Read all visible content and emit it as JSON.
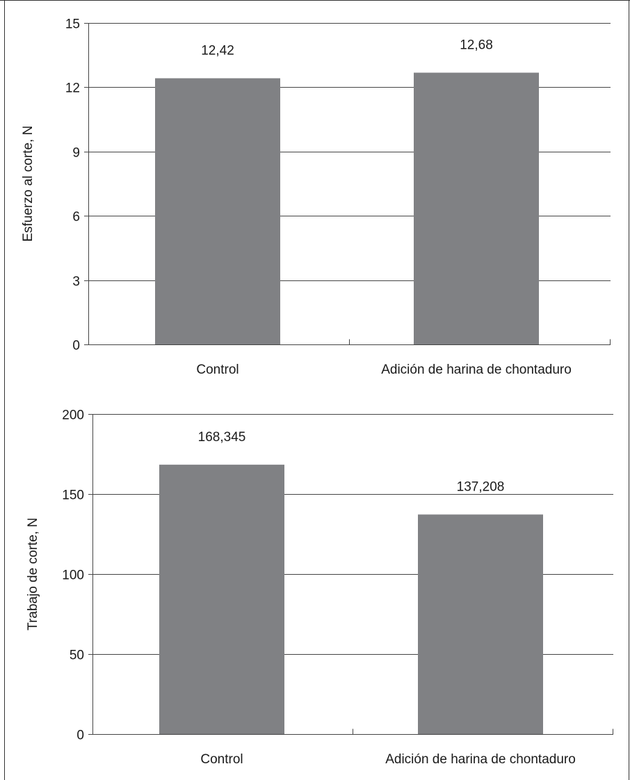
{
  "chart_data": [
    {
      "type": "bar",
      "categories": [
        "Control",
        "Adición de harina de chontaduro"
      ],
      "values": [
        12.42,
        12.68
      ],
      "data_labels": [
        "12,42",
        "12,68"
      ],
      "ylabel": "Esfuerzo al corte, N",
      "ylim": [
        0,
        15
      ],
      "yticks": [
        0,
        3,
        6,
        9,
        12,
        15
      ],
      "grid": true,
      "bar_color": "#808184"
    },
    {
      "type": "bar",
      "categories": [
        "Control",
        "Adición de harina de chontaduro"
      ],
      "values": [
        168.345,
        137.208
      ],
      "data_labels": [
        "168,345",
        "137,208"
      ],
      "ylabel": "Trabajo de corte, N",
      "ylim": [
        0,
        200
      ],
      "yticks": [
        0,
        50,
        100,
        150,
        200
      ],
      "grid": true,
      "bar_color": "#808184"
    }
  ]
}
